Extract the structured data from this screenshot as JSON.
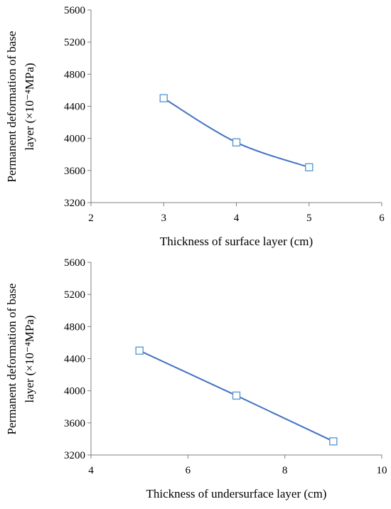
{
  "chart_data": [
    {
      "type": "line",
      "title": "",
      "xlabel": "Thickness of surface layer (cm)",
      "ylabel_line1": "Permanent deformation of base",
      "ylabel_line2": "layer (×10⁻⁴MPa)",
      "xlim": [
        2,
        6
      ],
      "ylim": [
        3200,
        5600
      ],
      "xticks": [
        2,
        3,
        4,
        5,
        6
      ],
      "yticks": [
        3200,
        3600,
        4000,
        4400,
        4800,
        5200,
        5600
      ],
      "grid": false,
      "series": [
        {
          "x": [
            3,
            4,
            5
          ],
          "values": [
            4500,
            3950,
            3640
          ],
          "color": "#4472C4",
          "marker": "square",
          "smooth": true
        }
      ]
    },
    {
      "type": "line",
      "title": "",
      "xlabel": "Thickness of undersurface layer (cm)",
      "ylabel_line1": "Permanent deformation of base",
      "ylabel_line2": "layer (×10⁻⁴MPa)",
      "xlim": [
        4,
        10
      ],
      "ylim": [
        3200,
        5600
      ],
      "xticks": [
        4,
        6,
        8,
        10
      ],
      "yticks": [
        3200,
        3600,
        4000,
        4400,
        4800,
        5200,
        5600
      ],
      "grid": false,
      "series": [
        {
          "x": [
            5,
            7,
            9
          ],
          "values": [
            4500,
            3940,
            3370
          ],
          "color": "#4472C4",
          "marker": "square",
          "smooth": false
        }
      ]
    }
  ]
}
